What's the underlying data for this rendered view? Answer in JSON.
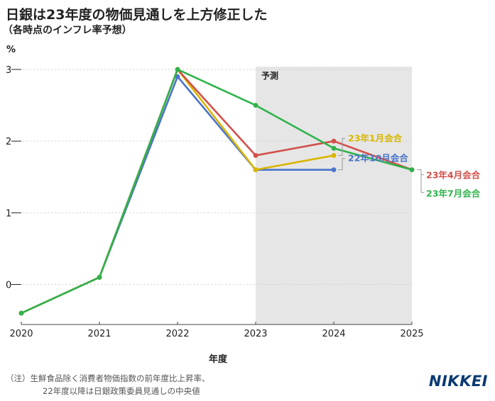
{
  "title": "日銀は23年度の物価見通しを上方修正した",
  "subtitle": "（各時点のインフレ率予想）",
  "chart_data": {
    "type": "line",
    "unit": "%",
    "xlabel": "年度",
    "x": [
      2020,
      2021,
      2022,
      2023,
      2024,
      2025
    ],
    "yticks": [
      0,
      1,
      2,
      3
    ],
    "ylim": [
      -0.4,
      3.0
    ],
    "forecast_region": {
      "label": "予測",
      "from": 2023,
      "to": 2025
    },
    "series": [
      {
        "name": "22年10月会合",
        "color": "#4a74c9",
        "values": [
          -0.4,
          0.1,
          2.9,
          1.6,
          1.6,
          null
        ]
      },
      {
        "name": "23年1月会合",
        "color": "#d9b600",
        "values": [
          -0.4,
          0.1,
          3.0,
          1.6,
          1.8,
          null
        ]
      },
      {
        "name": "23年4月会合",
        "color": "#d2504a",
        "values": [
          -0.4,
          0.1,
          3.0,
          1.8,
          2.0,
          1.6
        ]
      },
      {
        "name": "23年7月会合",
        "color": "#2fb34a",
        "values": [
          -0.4,
          0.1,
          3.0,
          2.5,
          1.9,
          1.6
        ]
      }
    ]
  },
  "note_line1": "（注）生鮮食品除く消費者物価指数の前年度比上昇率、",
  "note_line2": "22年度以降は日銀政策委員見通しの中央値",
  "logo": "NIKKEI"
}
